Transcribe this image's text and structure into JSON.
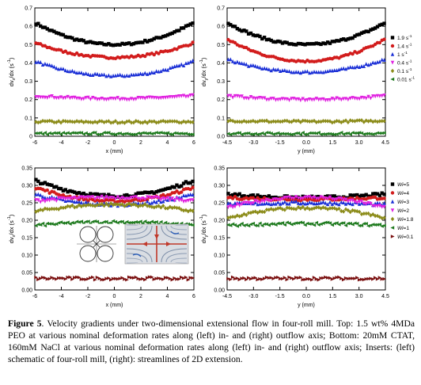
{
  "chart_data": [
    {
      "panel": "top-left",
      "type": "scatter",
      "xlabel": "x (mm)",
      "ylabel": "dvx/dx (s-1)",
      "xlim": [
        -6,
        6
      ],
      "ylim": [
        0,
        0.7
      ],
      "xticks": [
        "-6",
        "-4",
        "-2",
        "0",
        "2",
        "4",
        "6"
      ],
      "yticks": [
        "0",
        "0.1",
        "0.2",
        "0.3",
        "0.4",
        "0.5",
        "0.6",
        "0.7"
      ],
      "series": [
        {
          "color": "#000000",
          "marker": "square",
          "edge": 0.62,
          "center": 0.5
        },
        {
          "color": "#d21c1c",
          "marker": "circle",
          "edge": 0.51,
          "center": 0.43
        },
        {
          "color": "#1a2fd6",
          "marker": "triangle",
          "edge": 0.41,
          "center": 0.33
        },
        {
          "color": "#e021e0",
          "marker": "triangle-down",
          "edge": 0.22,
          "center": 0.205
        },
        {
          "color": "#8c8c1a",
          "marker": "diamond",
          "edge": 0.08,
          "center": 0.078
        },
        {
          "color": "#1e7a1e",
          "marker": "triangle-left",
          "edge": 0.015,
          "center": 0.015
        }
      ]
    },
    {
      "panel": "top-right",
      "type": "scatter",
      "xlabel": "y (mm)",
      "ylabel": "dvy/dx (s-1)",
      "xlim": [
        -4.5,
        4.5
      ],
      "ylim": [
        0,
        0.7
      ],
      "xticks": [
        "-4.5",
        "-3.0",
        "-1.5",
        "0.0",
        "1.5",
        "3.0",
        "4.5"
      ],
      "yticks": [
        "0.0",
        "0.1",
        "0.2",
        "0.3",
        "0.4",
        "0.5",
        "0.6",
        "0.7"
      ],
      "legend": [
        "1.9 s-1",
        "1.4 s-1",
        "1 s-1",
        "0.4 s-1",
        "0.1 s-1",
        "0.01 s-1"
      ],
      "legend_position": "right",
      "series": [
        {
          "name": "1.9 s-1",
          "color": "#000000",
          "marker": "square",
          "edge": 0.62,
          "center": 0.5
        },
        {
          "name": "1.4 s-1",
          "color": "#d21c1c",
          "marker": "circle",
          "edge": 0.53,
          "center": 0.41
        },
        {
          "name": "1 s-1",
          "color": "#1a2fd6",
          "marker": "triangle",
          "edge": 0.42,
          "center": 0.35
        },
        {
          "name": "0.4 s-1",
          "color": "#e021e0",
          "marker": "triangle-down",
          "edge": 0.22,
          "center": 0.2
        },
        {
          "name": "0.1 s-1",
          "color": "#8c8c1a",
          "marker": "diamond",
          "edge": 0.085,
          "center": 0.08
        },
        {
          "name": "0.01 s-1",
          "color": "#1e7a1e",
          "marker": "triangle-left",
          "edge": 0.015,
          "center": 0.015
        }
      ]
    },
    {
      "panel": "bottom-left",
      "type": "scatter",
      "xlabel": "x (mm)",
      "ylabel": "dvx/dx (s-1)",
      "xlim": [
        -6,
        6
      ],
      "ylim": [
        0,
        0.35
      ],
      "xticks": [
        "-6",
        "-4",
        "-2",
        "0",
        "2",
        "4",
        "6"
      ],
      "yticks": [
        "0.00",
        "0.05",
        "0.10",
        "0.15",
        "0.20",
        "0.25",
        "0.30",
        "0.35"
      ],
      "series": [
        {
          "color": "#000000",
          "marker": "square",
          "edge": 0.315,
          "center": 0.27
        },
        {
          "color": "#d21c1c",
          "marker": "circle",
          "edge": 0.295,
          "center": 0.255
        },
        {
          "color": "#1a2fd6",
          "marker": "triangle",
          "edge": 0.275,
          "center": 0.245
        },
        {
          "color": "#e021e0",
          "marker": "triangle-down",
          "edge": 0.255,
          "center": 0.265
        },
        {
          "color": "#8c8c1a",
          "marker": "diamond",
          "edge": 0.225,
          "center": 0.245
        },
        {
          "color": "#1e7a1e",
          "marker": "triangle-left",
          "edge": 0.185,
          "center": 0.195
        },
        {
          "color": "#7a0f0f",
          "marker": "triangle-right",
          "edge": 0.033,
          "center": 0.033
        }
      ]
    },
    {
      "panel": "bottom-right",
      "type": "scatter",
      "xlabel": "y (mm)",
      "ylabel": "dvy/dx (s-1)",
      "xlim": [
        -4.5,
        4.5
      ],
      "ylim": [
        0,
        0.35
      ],
      "xticks": [
        "-4.5",
        "-3.0",
        "-1.5",
        "0.0",
        "1.5",
        "3.0",
        "4.5"
      ],
      "yticks": [
        "0.00",
        "0.05",
        "0.10",
        "0.15",
        "0.20",
        "0.25",
        "0.30",
        "0.35"
      ],
      "legend": [
        "Wi=5",
        "Wi=4",
        "Wi=3",
        "Wi=2",
        "Wi=1.8",
        "Wi=1",
        "Wi=0.1"
      ],
      "legend_position": "right",
      "series": [
        {
          "name": "Wi=5",
          "color": "#000000",
          "marker": "square",
          "edge": 0.275,
          "center": 0.265
        },
        {
          "name": "Wi=4",
          "color": "#d21c1c",
          "marker": "circle",
          "edge": 0.265,
          "center": 0.26
        },
        {
          "name": "Wi=3",
          "color": "#1a2fd6",
          "marker": "triangle",
          "edge": 0.245,
          "center": 0.25
        },
        {
          "name": "Wi=2",
          "color": "#e021e0",
          "marker": "triangle-down",
          "edge": 0.235,
          "center": 0.265
        },
        {
          "name": "Wi=1.8",
          "color": "#8c8c1a",
          "marker": "diamond",
          "edge": 0.205,
          "center": 0.235
        },
        {
          "name": "Wi=1",
          "color": "#1e7a1e",
          "marker": "triangle-left",
          "edge": 0.185,
          "center": 0.19
        },
        {
          "name": "Wi=0.1",
          "color": "#7a0f0f",
          "marker": "triangle-right",
          "edge": 0.033,
          "center": 0.033
        }
      ]
    }
  ],
  "caption": {
    "label": "Figure 5",
    "text": ". Velocity gradients under two-dimensional extensional flow in four-roll mill. Top: 1.5 wt% 4MDa PEO at various nominal deformation rates along (left) in- and (right) outflow axis; Bottom: 20mM CTAT, 160mM NaCl at various nominal deformation rates along (left) in- and (right) outflow axis; Inserts: (left) schematic of four-roll mill, (right): streamlines of 2D extension."
  }
}
